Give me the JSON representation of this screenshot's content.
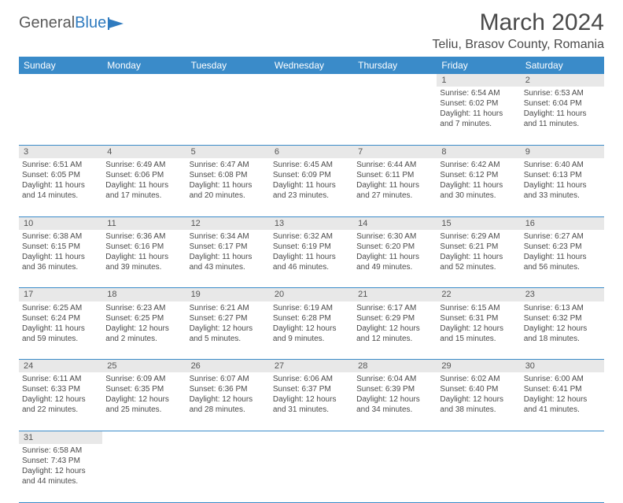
{
  "logo": {
    "part1": "General",
    "part2": "Blue"
  },
  "title": "March 2024",
  "location": "Teliu, Brasov County, Romania",
  "colors": {
    "header_bg": "#3a8bc9",
    "header_text": "#ffffff",
    "daynum_bg": "#e8e8e8",
    "cell_border": "#3a8bc9",
    "text": "#4a4a4a",
    "logo_blue": "#2f7bbf"
  },
  "weekdays": [
    "Sunday",
    "Monday",
    "Tuesday",
    "Wednesday",
    "Thursday",
    "Friday",
    "Saturday"
  ],
  "weeks": [
    [
      null,
      null,
      null,
      null,
      null,
      {
        "n": "1",
        "sr": "Sunrise: 6:54 AM",
        "ss": "Sunset: 6:02 PM",
        "d1": "Daylight: 11 hours",
        "d2": "and 7 minutes."
      },
      {
        "n": "2",
        "sr": "Sunrise: 6:53 AM",
        "ss": "Sunset: 6:04 PM",
        "d1": "Daylight: 11 hours",
        "d2": "and 11 minutes."
      }
    ],
    [
      {
        "n": "3",
        "sr": "Sunrise: 6:51 AM",
        "ss": "Sunset: 6:05 PM",
        "d1": "Daylight: 11 hours",
        "d2": "and 14 minutes."
      },
      {
        "n": "4",
        "sr": "Sunrise: 6:49 AM",
        "ss": "Sunset: 6:06 PM",
        "d1": "Daylight: 11 hours",
        "d2": "and 17 minutes."
      },
      {
        "n": "5",
        "sr": "Sunrise: 6:47 AM",
        "ss": "Sunset: 6:08 PM",
        "d1": "Daylight: 11 hours",
        "d2": "and 20 minutes."
      },
      {
        "n": "6",
        "sr": "Sunrise: 6:45 AM",
        "ss": "Sunset: 6:09 PM",
        "d1": "Daylight: 11 hours",
        "d2": "and 23 minutes."
      },
      {
        "n": "7",
        "sr": "Sunrise: 6:44 AM",
        "ss": "Sunset: 6:11 PM",
        "d1": "Daylight: 11 hours",
        "d2": "and 27 minutes."
      },
      {
        "n": "8",
        "sr": "Sunrise: 6:42 AM",
        "ss": "Sunset: 6:12 PM",
        "d1": "Daylight: 11 hours",
        "d2": "and 30 minutes."
      },
      {
        "n": "9",
        "sr": "Sunrise: 6:40 AM",
        "ss": "Sunset: 6:13 PM",
        "d1": "Daylight: 11 hours",
        "d2": "and 33 minutes."
      }
    ],
    [
      {
        "n": "10",
        "sr": "Sunrise: 6:38 AM",
        "ss": "Sunset: 6:15 PM",
        "d1": "Daylight: 11 hours",
        "d2": "and 36 minutes."
      },
      {
        "n": "11",
        "sr": "Sunrise: 6:36 AM",
        "ss": "Sunset: 6:16 PM",
        "d1": "Daylight: 11 hours",
        "d2": "and 39 minutes."
      },
      {
        "n": "12",
        "sr": "Sunrise: 6:34 AM",
        "ss": "Sunset: 6:17 PM",
        "d1": "Daylight: 11 hours",
        "d2": "and 43 minutes."
      },
      {
        "n": "13",
        "sr": "Sunrise: 6:32 AM",
        "ss": "Sunset: 6:19 PM",
        "d1": "Daylight: 11 hours",
        "d2": "and 46 minutes."
      },
      {
        "n": "14",
        "sr": "Sunrise: 6:30 AM",
        "ss": "Sunset: 6:20 PM",
        "d1": "Daylight: 11 hours",
        "d2": "and 49 minutes."
      },
      {
        "n": "15",
        "sr": "Sunrise: 6:29 AM",
        "ss": "Sunset: 6:21 PM",
        "d1": "Daylight: 11 hours",
        "d2": "and 52 minutes."
      },
      {
        "n": "16",
        "sr": "Sunrise: 6:27 AM",
        "ss": "Sunset: 6:23 PM",
        "d1": "Daylight: 11 hours",
        "d2": "and 56 minutes."
      }
    ],
    [
      {
        "n": "17",
        "sr": "Sunrise: 6:25 AM",
        "ss": "Sunset: 6:24 PM",
        "d1": "Daylight: 11 hours",
        "d2": "and 59 minutes."
      },
      {
        "n": "18",
        "sr": "Sunrise: 6:23 AM",
        "ss": "Sunset: 6:25 PM",
        "d1": "Daylight: 12 hours",
        "d2": "and 2 minutes."
      },
      {
        "n": "19",
        "sr": "Sunrise: 6:21 AM",
        "ss": "Sunset: 6:27 PM",
        "d1": "Daylight: 12 hours",
        "d2": "and 5 minutes."
      },
      {
        "n": "20",
        "sr": "Sunrise: 6:19 AM",
        "ss": "Sunset: 6:28 PM",
        "d1": "Daylight: 12 hours",
        "d2": "and 9 minutes."
      },
      {
        "n": "21",
        "sr": "Sunrise: 6:17 AM",
        "ss": "Sunset: 6:29 PM",
        "d1": "Daylight: 12 hours",
        "d2": "and 12 minutes."
      },
      {
        "n": "22",
        "sr": "Sunrise: 6:15 AM",
        "ss": "Sunset: 6:31 PM",
        "d1": "Daylight: 12 hours",
        "d2": "and 15 minutes."
      },
      {
        "n": "23",
        "sr": "Sunrise: 6:13 AM",
        "ss": "Sunset: 6:32 PM",
        "d1": "Daylight: 12 hours",
        "d2": "and 18 minutes."
      }
    ],
    [
      {
        "n": "24",
        "sr": "Sunrise: 6:11 AM",
        "ss": "Sunset: 6:33 PM",
        "d1": "Daylight: 12 hours",
        "d2": "and 22 minutes."
      },
      {
        "n": "25",
        "sr": "Sunrise: 6:09 AM",
        "ss": "Sunset: 6:35 PM",
        "d1": "Daylight: 12 hours",
        "d2": "and 25 minutes."
      },
      {
        "n": "26",
        "sr": "Sunrise: 6:07 AM",
        "ss": "Sunset: 6:36 PM",
        "d1": "Daylight: 12 hours",
        "d2": "and 28 minutes."
      },
      {
        "n": "27",
        "sr": "Sunrise: 6:06 AM",
        "ss": "Sunset: 6:37 PM",
        "d1": "Daylight: 12 hours",
        "d2": "and 31 minutes."
      },
      {
        "n": "28",
        "sr": "Sunrise: 6:04 AM",
        "ss": "Sunset: 6:39 PM",
        "d1": "Daylight: 12 hours",
        "d2": "and 34 minutes."
      },
      {
        "n": "29",
        "sr": "Sunrise: 6:02 AM",
        "ss": "Sunset: 6:40 PM",
        "d1": "Daylight: 12 hours",
        "d2": "and 38 minutes."
      },
      {
        "n": "30",
        "sr": "Sunrise: 6:00 AM",
        "ss": "Sunset: 6:41 PM",
        "d1": "Daylight: 12 hours",
        "d2": "and 41 minutes."
      }
    ],
    [
      {
        "n": "31",
        "sr": "Sunrise: 6:58 AM",
        "ss": "Sunset: 7:43 PM",
        "d1": "Daylight: 12 hours",
        "d2": "and 44 minutes."
      },
      null,
      null,
      null,
      null,
      null,
      null
    ]
  ]
}
